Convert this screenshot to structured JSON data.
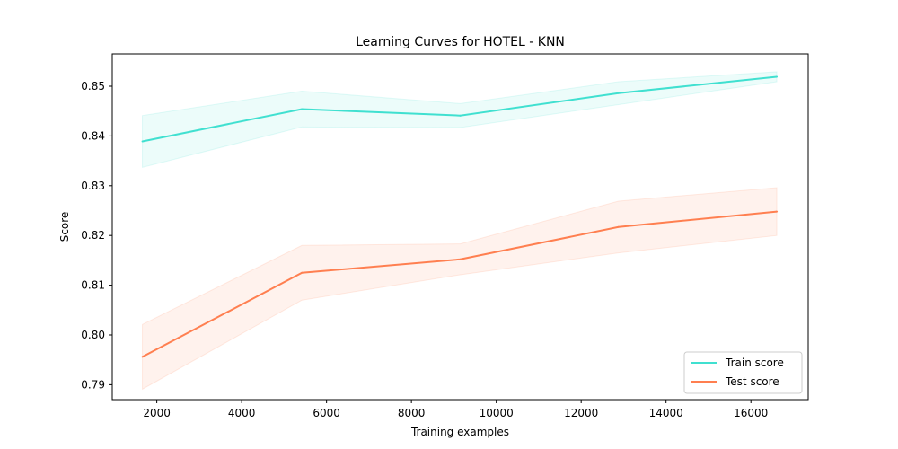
{
  "chart_data": {
    "type": "line",
    "title": "Learning Curves for HOTEL - KNN",
    "xlabel": "Training examples",
    "ylabel": "Score",
    "xlim": [
      950,
      17350
    ],
    "ylim": [
      0.787,
      0.8565
    ],
    "xticks": [
      2000,
      4000,
      6000,
      8000,
      10000,
      12000,
      14000,
      16000
    ],
    "yticks": [
      0.79,
      0.8,
      0.81,
      0.82,
      0.83,
      0.84,
      0.85
    ],
    "grid": false,
    "legend_position": "bottom-right",
    "x": [
      1660,
      5420,
      9150,
      12880,
      16610
    ],
    "series": [
      {
        "name": "Train score",
        "color": "#40e0d0",
        "values": [
          0.8389,
          0.8454,
          0.8441,
          0.8486,
          0.8519
        ],
        "band_low": [
          0.8337,
          0.8418,
          0.8417,
          0.8463,
          0.8509
        ],
        "band_high": [
          0.8441,
          0.849,
          0.8465,
          0.8509,
          0.8529
        ]
      },
      {
        "name": "Test score",
        "color": "#ff7f50",
        "values": [
          0.7956,
          0.8125,
          0.8152,
          0.8217,
          0.8248
        ],
        "band_low": [
          0.7891,
          0.807,
          0.8121,
          0.8165,
          0.82
        ],
        "band_high": [
          0.8021,
          0.818,
          0.8183,
          0.8269,
          0.8296
        ]
      }
    ]
  }
}
